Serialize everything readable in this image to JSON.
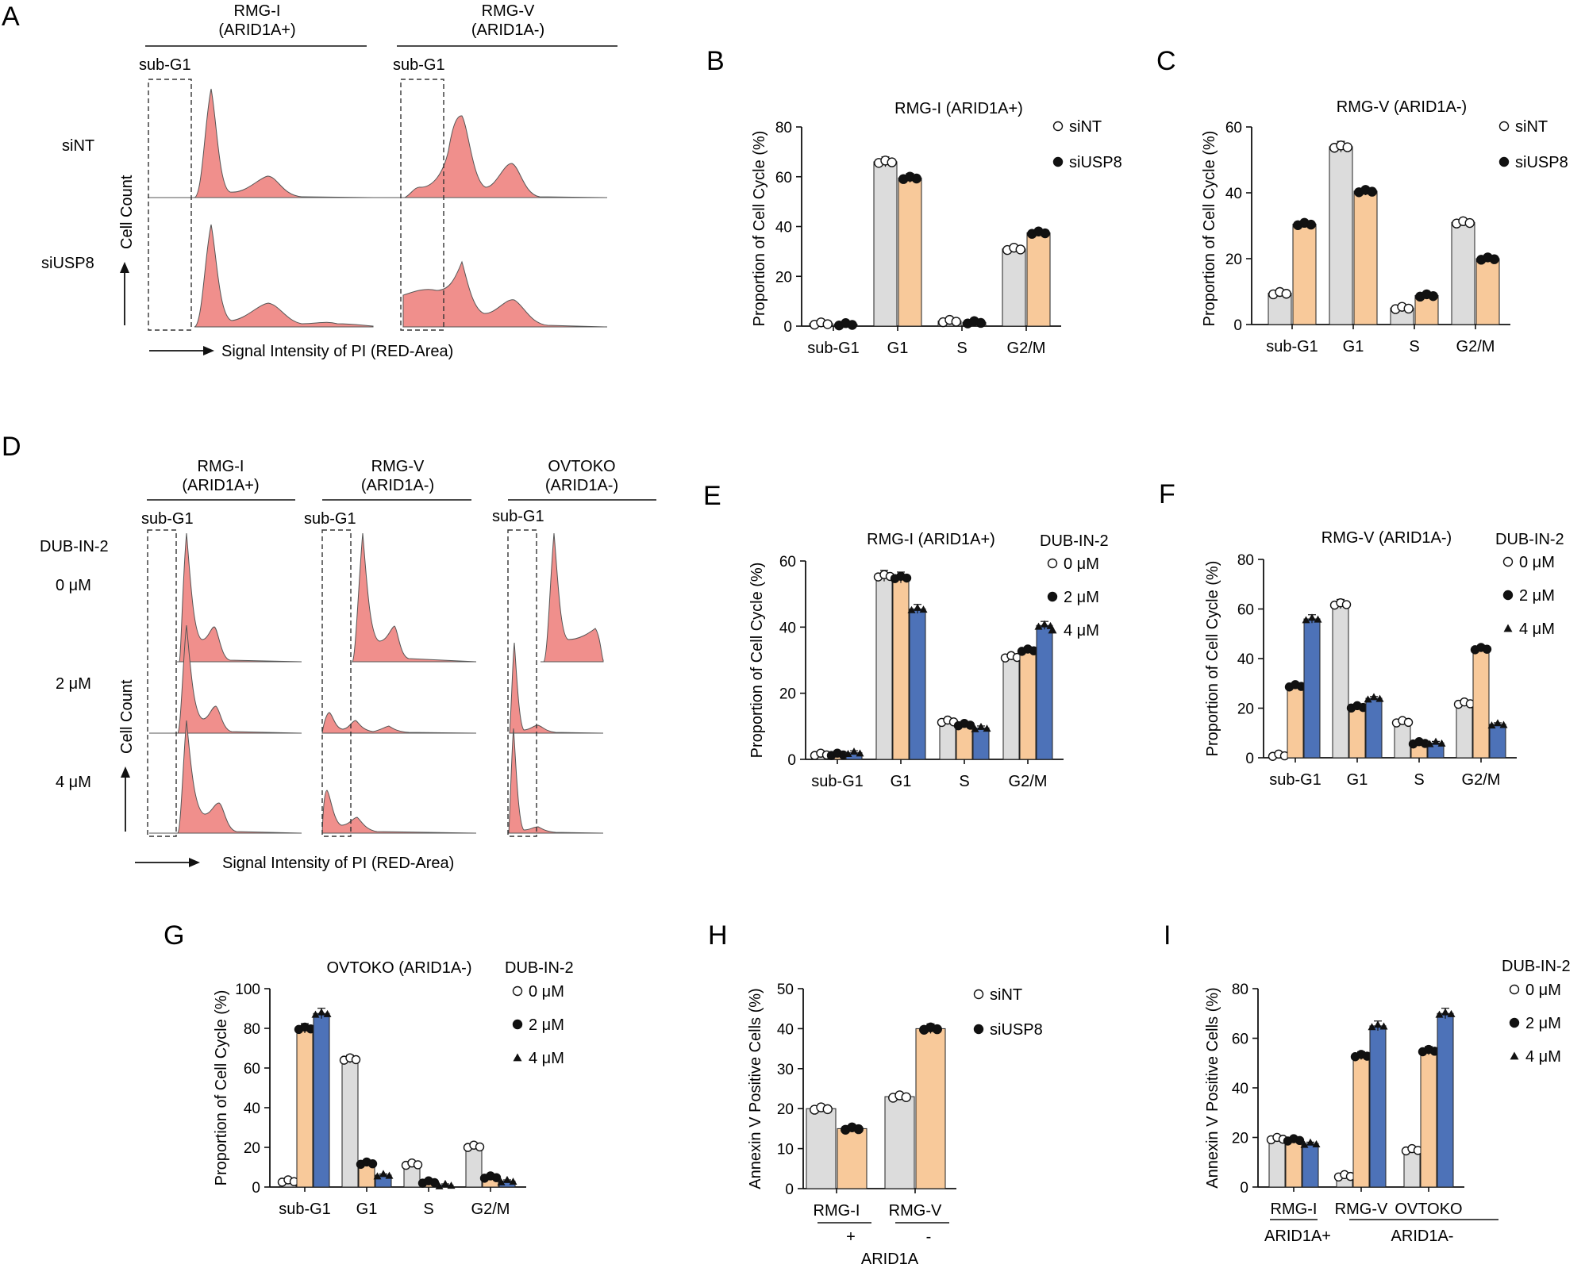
{
  "figure": {
    "panel_labels": [
      "A",
      "B",
      "C",
      "D",
      "E",
      "F",
      "G",
      "H",
      "I"
    ]
  },
  "histograms": {
    "axis_label_x": "Signal Intensity of PI (RED-Area)",
    "axis_label_y": "Cell Count",
    "gate_label": "sub-G1",
    "fill_color": "#f08f8c",
    "panel_A": {
      "cell_lines": [
        {
          "name": "RMG-I",
          "status": "(ARID1A+)"
        },
        {
          "name": "RMG-V",
          "status": "(ARID1A-)"
        }
      ],
      "row_labels": [
        "siNT",
        "siUSP8"
      ]
    },
    "panel_D": {
      "cell_lines": [
        {
          "name": "RMG-I",
          "status": "(ARID1A+)"
        },
        {
          "name": "RMG-V",
          "status": "(ARID1A-)"
        },
        {
          "name": "OVTOKO",
          "status": "(ARID1A-)"
        }
      ],
      "treatment": "DUB-IN-2",
      "row_labels": [
        "0 μM",
        "2 μM",
        "4 μM"
      ]
    }
  },
  "colors": {
    "gray": "#dcdcdc",
    "orange": "#f8c99a",
    "blue": "#4d72b8"
  },
  "chart_data": [
    {
      "id": "B",
      "type": "bar",
      "title": "RMG-I (ARID1A+)",
      "ylabel": "Proportion of Cell Cycle (%)",
      "categories": [
        "sub-G1",
        "G1",
        "S",
        "G2/M"
      ],
      "ylim": [
        0,
        80
      ],
      "yticks": [
        0,
        20,
        40,
        60,
        80
      ],
      "series": [
        {
          "name": "siNT",
          "marker": "open-circle",
          "values": [
            1,
            66,
            2,
            31
          ]
        },
        {
          "name": "siUSP8",
          "marker": "filled-circle",
          "values": [
            0.7,
            59.5,
            1.5,
            37.5
          ]
        }
      ]
    },
    {
      "id": "C",
      "type": "bar",
      "title": "RMG-V (ARID1A-)",
      "ylabel": "Proportion of Cell Cycle (%)",
      "categories": [
        "sub-G1",
        "G1",
        "S",
        "G2/M"
      ],
      "ylim": [
        0,
        60
      ],
      "yticks": [
        0,
        20,
        40,
        60
      ],
      "series": [
        {
          "name": "siNT",
          "marker": "open-circle",
          "values": [
            9.5,
            54,
            5,
            31
          ]
        },
        {
          "name": "siUSP8",
          "marker": "filled-circle",
          "values": [
            30.5,
            40.5,
            8.8,
            20
          ]
        }
      ]
    },
    {
      "id": "E",
      "type": "bar",
      "title": "RMG-I (ARID1A+)",
      "ylabel": "Proportion of Cell Cycle (%)",
      "categories": [
        "sub-G1",
        "G1",
        "S",
        "G2/M"
      ],
      "ylim": [
        0,
        60
      ],
      "yticks": [
        0,
        20,
        40,
        60
      ],
      "legend_title": "DUB-IN-2",
      "series": [
        {
          "name": "0 μM",
          "marker": "open-circle",
          "values": [
            1.5,
            55.5,
            11.5,
            31
          ]
        },
        {
          "name": "2 μM",
          "marker": "filled-circle",
          "values": [
            1.5,
            55,
            10.5,
            33
          ]
        },
        {
          "name": "4 μM",
          "marker": "filled-triangle",
          "values": [
            2,
            45.5,
            9.5,
            40.5
          ]
        }
      ]
    },
    {
      "id": "F",
      "type": "bar",
      "title": "RMG-V (ARID1A-)",
      "ylabel": "Proportion of Cell Cycle (%)",
      "categories": [
        "sub-G1",
        "G1",
        "S",
        "G2/M"
      ],
      "ylim": [
        0,
        80
      ],
      "yticks": [
        0,
        20,
        40,
        60,
        80
      ],
      "legend_title": "DUB-IN-2",
      "series": [
        {
          "name": "0 μM",
          "marker": "open-circle",
          "values": [
            1,
            62,
            14.5,
            22
          ]
        },
        {
          "name": "2 μM",
          "marker": "filled-circle",
          "values": [
            29,
            20.5,
            6,
            44
          ]
        },
        {
          "name": "4 μM",
          "marker": "filled-triangle",
          "values": [
            56,
            24,
            6,
            13.5
          ]
        }
      ]
    },
    {
      "id": "G",
      "type": "bar",
      "title": "OVTOKO (ARID1A-)",
      "ylabel": "Proportion of Cell Cycle (%)",
      "categories": [
        "sub-G1",
        "G1",
        "S",
        "G2/M"
      ],
      "ylim": [
        0,
        100
      ],
      "yticks": [
        0,
        20,
        40,
        60,
        80,
        100
      ],
      "legend_title": "DUB-IN-2",
      "series": [
        {
          "name": "0 μM",
          "marker": "open-circle",
          "values": [
            3,
            64.5,
            11.5,
            20.5
          ]
        },
        {
          "name": "2 μM",
          "marker": "filled-circle",
          "values": [
            80,
            12,
            2.5,
            5
          ]
        },
        {
          "name": "4 μM",
          "marker": "filled-triangle",
          "values": [
            87.5,
            6,
            1,
            3
          ]
        }
      ]
    },
    {
      "id": "H",
      "type": "bar",
      "ylabel": "Annexin V Positive Cells (%)",
      "categories": [
        "RMG-I",
        "RMG-V"
      ],
      "sublabels": [
        "+",
        "-"
      ],
      "group_label": "ARID1A",
      "ylim": [
        0,
        50
      ],
      "yticks": [
        0,
        10,
        20,
        30,
        40,
        50
      ],
      "series": [
        {
          "name": "siNT",
          "marker": "open-circle",
          "values": [
            20,
            23
          ]
        },
        {
          "name": "siUSP8",
          "marker": "filled-circle",
          "values": [
            15,
            40
          ]
        }
      ]
    },
    {
      "id": "I",
      "type": "bar",
      "ylabel": "Annexin V Positive Cells (%)",
      "categories": [
        "RMG-I",
        "RMG-V",
        "OVTOKO"
      ],
      "group_labels": [
        "ARID1A+",
        "ARID1A-"
      ],
      "ylim": [
        0,
        80
      ],
      "yticks": [
        0,
        20,
        40,
        60,
        80
      ],
      "legend_title": "DUB-IN-2",
      "series": [
        {
          "name": "0 μM",
          "marker": "open-circle",
          "values": [
            19.5,
            4.5,
            15
          ]
        },
        {
          "name": "2 μM",
          "marker": "filled-circle",
          "values": [
            19,
            53,
            55
          ]
        },
        {
          "name": "4 μM",
          "marker": "filled-triangle",
          "values": [
            17.5,
            65,
            70
          ]
        }
      ]
    }
  ]
}
